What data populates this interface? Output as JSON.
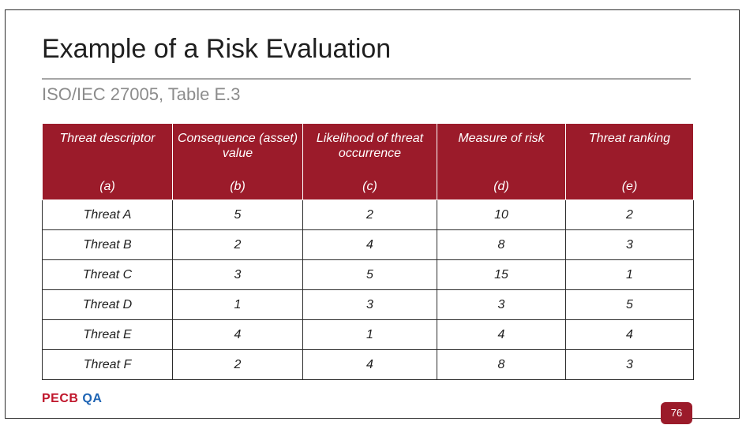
{
  "slide": {
    "title": "Example of a Risk Evaluation",
    "subtitle": "ISO/IEC 27005, Table E.3",
    "page_number": "76",
    "logo": {
      "part1": "PECB",
      "part2": "QA"
    }
  },
  "colors": {
    "header_bg": "#9b1b2a",
    "logo_red": "#c0172c",
    "logo_blue": "#1e64b4"
  },
  "table": {
    "headers": [
      {
        "label": "Threat descriptor",
        "code": "(a)"
      },
      {
        "label": "Consequence (asset) value",
        "code": "(b)"
      },
      {
        "label": "Likelihood of threat occurrence",
        "code": "(c)"
      },
      {
        "label": "Measure of risk",
        "code": "(d)"
      },
      {
        "label": "Threat ranking",
        "code": "(e)"
      }
    ],
    "rows": [
      [
        "Threat A",
        "5",
        "2",
        "10",
        "2"
      ],
      [
        "Threat B",
        "2",
        "4",
        "8",
        "3"
      ],
      [
        "Threat C",
        "3",
        "5",
        "15",
        "1"
      ],
      [
        "Threat D",
        "1",
        "3",
        "3",
        "5"
      ],
      [
        "Threat E",
        "4",
        "1",
        "4",
        "4"
      ],
      [
        "Threat F",
        "2",
        "4",
        "8",
        "3"
      ]
    ]
  }
}
